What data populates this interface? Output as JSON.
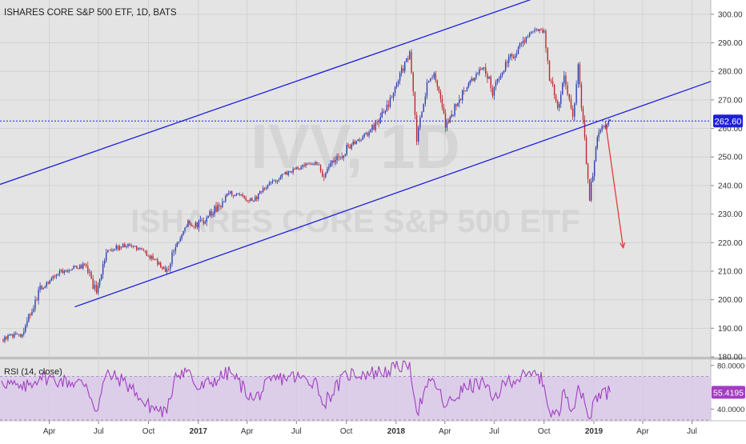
{
  "header": {
    "title": "ISHARES CORE S&P 500 ETF, 1D, BATS"
  },
  "watermark": {
    "line1": "IVV, 1D",
    "line2": "ISHARES CORE S&P 500 ETF"
  },
  "colors": {
    "pane_bg": "#e4e4e4",
    "up": "#2f3fae",
    "down": "#c0282c",
    "trendline": "#1f1fd9",
    "projection": "#e53b3b",
    "current_line": "#1f1fd9",
    "rsi_line": "#a23ec2",
    "rsi_band": "#d9c8ea",
    "price_badge": "#1f1fd9",
    "rsi_badge": "#a23ec2"
  },
  "chart_data": [
    {
      "type": "candlestick",
      "title": "ISHARES CORE S&P 500 ETF, 1D, BATS",
      "ylim": [
        180,
        305
      ],
      "y_ticks": [
        "180.00",
        "190.00",
        "200.00",
        "210.00",
        "220.00",
        "230.00",
        "240.00",
        "250.00",
        "260.00",
        "270.00",
        "280.00",
        "290.00",
        "300.00"
      ],
      "x_ticks": [
        "Apr",
        "Jul",
        "Oct",
        "2017",
        "Apr",
        "Jul",
        "Oct",
        "2018",
        "Apr",
        "Jul",
        "Oct",
        "2019",
        "Apr",
        "Jul"
      ],
      "current_price": "262.60",
      "series": [
        {
          "x": [
            "2016-01-04",
            "2016-02-11",
            "2016-03-15",
            "2016-04-20",
            "2016-06-08",
            "2016-06-27",
            "2016-07-15",
            "2016-08-15",
            "2016-09-09",
            "2016-09-22",
            "2016-11-04",
            "2016-11-20",
            "2016-12-13",
            "2016-12-30",
            "2017-03-01",
            "2017-04-13",
            "2017-05-15",
            "2017-06-19",
            "2017-08-08",
            "2017-08-18",
            "2017-10-02",
            "2017-11-15",
            "2017-12-18",
            "2018-01-26",
            "2018-02-08",
            "2018-02-27",
            "2018-03-12",
            "2018-04-02",
            "2018-05-09",
            "2018-06-12",
            "2018-06-28",
            "2018-07-25",
            "2018-08-29",
            "2018-09-20",
            "2018-10-01",
            "2018-10-11",
            "2018-10-29",
            "2018-11-07",
            "2018-11-23",
            "2018-12-03",
            "2018-12-24",
            "2019-01-02",
            "2019-01-10",
            "2019-01-31"
          ],
          "close": [
            186,
            188,
            204,
            210,
            212,
            202,
            217,
            219,
            218,
            217,
            210,
            219,
            227,
            226,
            237,
            235,
            241,
            245,
            248,
            244,
            253,
            259,
            268,
            287,
            256,
            275,
            280,
            261,
            274,
            282,
            273,
            283,
            292,
            295,
            294,
            278,
            267,
            279,
            263,
            281,
            236,
            249,
            259,
            262.6
          ]
        }
      ]
    },
    {
      "type": "line",
      "title": "RSI (14, close)",
      "ylim": [
        30,
        85
      ],
      "y_ticks": [
        "40.0000",
        "80.0000"
      ],
      "band": [
        30,
        70
      ],
      "current_value": "55.4195",
      "series": [
        {
          "x": [
            "2016-01-04",
            "2016-02-11",
            "2016-03-15",
            "2016-04-20",
            "2016-06-08",
            "2016-06-27",
            "2016-07-15",
            "2016-08-15",
            "2016-09-09",
            "2016-09-22",
            "2016-11-04",
            "2016-11-20",
            "2016-12-13",
            "2016-12-30",
            "2017-03-01",
            "2017-04-13",
            "2017-05-15",
            "2017-06-19",
            "2017-08-08",
            "2017-08-18",
            "2017-10-02",
            "2017-11-15",
            "2017-12-18",
            "2018-01-26",
            "2018-02-08",
            "2018-02-27",
            "2018-03-12",
            "2018-04-02",
            "2018-05-09",
            "2018-06-12",
            "2018-06-28",
            "2018-07-25",
            "2018-08-29",
            "2018-09-20",
            "2018-10-01",
            "2018-10-11",
            "2018-10-29",
            "2018-11-07",
            "2018-11-23",
            "2018-12-03",
            "2018-12-24",
            "2019-01-02",
            "2019-01-10",
            "2019-01-31"
          ],
          "values": [
            66,
            58,
            70,
            66,
            63,
            38,
            72,
            66,
            55,
            45,
            36,
            73,
            76,
            58,
            74,
            48,
            66,
            70,
            65,
            44,
            72,
            73,
            75,
            83,
            37,
            60,
            66,
            42,
            60,
            64,
            48,
            66,
            70,
            72,
            62,
            38,
            34,
            58,
            40,
            62,
            30,
            50,
            55,
            55.4
          ]
        }
      ]
    }
  ],
  "drawings": {
    "upper_channel": [
      [
        "2016-01-01",
        240.4
      ],
      [
        "2018-10-12",
        307.5
      ]
    ],
    "lower_channel": [
      [
        "2016-05-18",
        197.5
      ],
      [
        "2019-08-05",
        276.5
      ]
    ],
    "projection_arrow": [
      [
        "2019-01-22",
        262.6
      ],
      [
        "2019-02-24",
        218.2
      ]
    ]
  }
}
